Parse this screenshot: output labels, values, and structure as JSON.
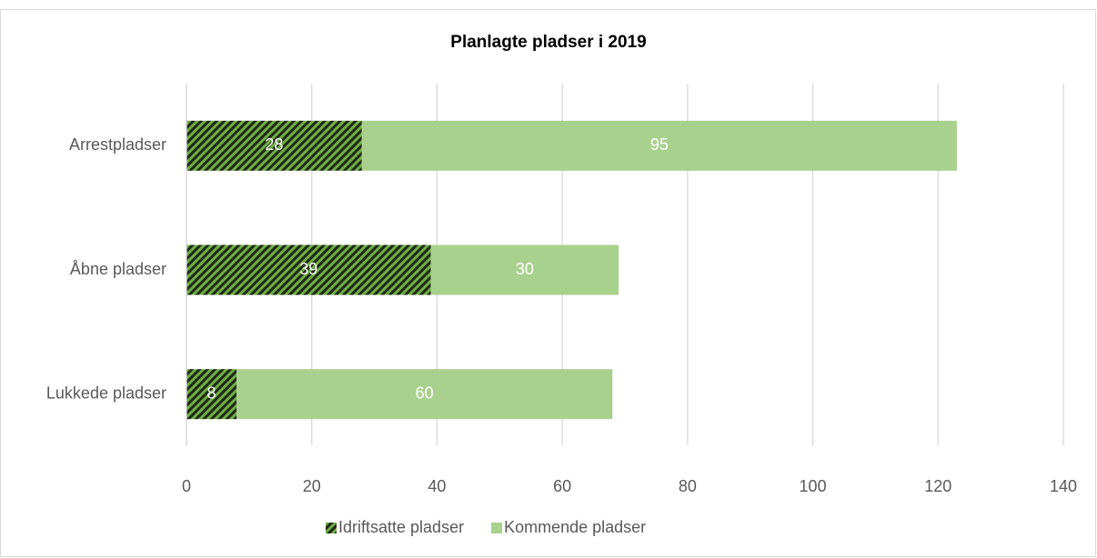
{
  "chart_data": {
    "type": "bar",
    "orientation": "horizontal",
    "stacked": true,
    "title": "Planlagte pladser i 2019",
    "categories": [
      "Arrestpladser",
      "Åbne pladser",
      "Lukkede pladser"
    ],
    "series": [
      {
        "name": "Idriftsatte pladser",
        "color": "#70ad47",
        "pattern": "hatch",
        "values": [
          28,
          39,
          8
        ]
      },
      {
        "name": "Kommende pladser",
        "color": "#a9d18e",
        "values": [
          95,
          30,
          60
        ]
      }
    ],
    "xlim": [
      0,
      140
    ],
    "xticks": [
      0,
      20,
      40,
      60,
      80,
      100,
      120,
      140
    ],
    "grid": true,
    "legend": "bottom"
  }
}
